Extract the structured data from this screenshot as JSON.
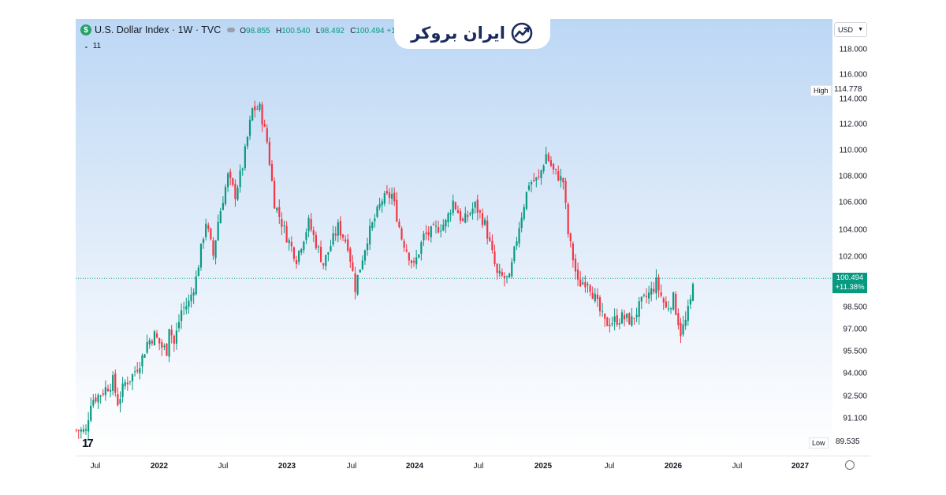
{
  "header": {
    "symbol_title": "U.S. Dollar Index · 1W · TVC",
    "ohlc": {
      "o_label": "O",
      "o": "98.855",
      "h_label": "H",
      "h": "100.540",
      "l_label": "L",
      "l": "98.492",
      "c_label": "C",
      "c": "100.494 +1."
    },
    "indicators_count": "11"
  },
  "brand": {
    "name": "ایران بروکر"
  },
  "currency": {
    "selected": "USD"
  },
  "price_axis": {
    "ticks": [
      "118.000",
      "116.000",
      "114.000",
      "112.000",
      "110.000",
      "108.000",
      "106.000",
      "104.000",
      "102.000",
      "98.500",
      "97.000",
      "95.500",
      "94.000",
      "92.500",
      "91.100"
    ],
    "high_label": "High",
    "high_value": "114.778",
    "low_label": "Low",
    "low_value": "89.535",
    "last_price": "100.494",
    "last_change": "+11.38%"
  },
  "time_axis": {
    "labels": [
      "Jul",
      "2022",
      "Jul",
      "2023",
      "Jul",
      "2024",
      "Jul",
      "2025",
      "Jul",
      "2026",
      "Jul",
      "2027"
    ]
  },
  "colors": {
    "up": "#089981",
    "down": "#f23645",
    "accent": "#089981"
  },
  "chart_data": {
    "type": "candlestick",
    "title": "U.S. Dollar Index · 1W · TVC",
    "xlabel": "",
    "ylabel": "",
    "y_scale": "log",
    "ylim": [
      89.5,
      118.0
    ],
    "x_range": [
      "2021-05",
      "2027-02"
    ],
    "last_price": 100.494,
    "high": 114.778,
    "low": 89.535,
    "series": [
      {
        "name": "U.S. Dollar Index",
        "points": [
          {
            "x": "2021-05-07",
            "y": 90.2
          },
          {
            "x": "2021-06-04",
            "y": 90.1
          },
          {
            "x": "2021-06-18",
            "y": 92.2
          },
          {
            "x": "2021-07-16",
            "y": 92.7
          },
          {
            "x": "2021-08-20",
            "y": 93.5
          },
          {
            "x": "2021-09-03",
            "y": 92.1
          },
          {
            "x": "2021-09-24",
            "y": 93.4
          },
          {
            "x": "2021-10-15",
            "y": 93.9
          },
          {
            "x": "2021-11-12",
            "y": 95.1
          },
          {
            "x": "2021-11-26",
            "y": 96.1
          },
          {
            "x": "2021-12-17",
            "y": 96.6
          },
          {
            "x": "2022-01-07",
            "y": 95.8
          },
          {
            "x": "2022-01-21",
            "y": 95.6
          },
          {
            "x": "2022-01-28",
            "y": 97.3
          },
          {
            "x": "2022-02-11",
            "y": 96.0
          },
          {
            "x": "2022-03-04",
            "y": 98.3
          },
          {
            "x": "2022-03-25",
            "y": 98.8
          },
          {
            "x": "2022-04-15",
            "y": 100.5
          },
          {
            "x": "2022-05-13",
            "y": 104.6
          },
          {
            "x": "2022-06-03",
            "y": 102.1
          },
          {
            "x": "2022-06-17",
            "y": 104.6
          },
          {
            "x": "2022-07-15",
            "y": 108.0
          },
          {
            "x": "2022-08-05",
            "y": 106.6
          },
          {
            "x": "2022-08-26",
            "y": 108.8
          },
          {
            "x": "2022-09-23",
            "y": 113.2
          },
          {
            "x": "2022-10-14",
            "y": 113.3
          },
          {
            "x": "2022-11-04",
            "y": 110.7
          },
          {
            "x": "2022-11-25",
            "y": 106.0
          },
          {
            "x": "2022-12-30",
            "y": 103.5
          },
          {
            "x": "2023-01-27",
            "y": 101.9
          },
          {
            "x": "2023-03-03",
            "y": 104.5
          },
          {
            "x": "2023-03-31",
            "y": 102.5
          },
          {
            "x": "2023-04-14",
            "y": 101.5
          },
          {
            "x": "2023-05-26",
            "y": 104.2
          },
          {
            "x": "2023-06-23",
            "y": 102.9
          },
          {
            "x": "2023-07-14",
            "y": 99.9
          },
          {
            "x": "2023-08-18",
            "y": 103.4
          },
          {
            "x": "2023-09-29",
            "y": 106.2
          },
          {
            "x": "2023-10-27",
            "y": 106.6
          },
          {
            "x": "2023-11-24",
            "y": 103.4
          },
          {
            "x": "2023-12-29",
            "y": 101.3
          },
          {
            "x": "2024-01-26",
            "y": 103.5
          },
          {
            "x": "2024-02-23",
            "y": 103.9
          },
          {
            "x": "2024-03-29",
            "y": 104.5
          },
          {
            "x": "2024-04-19",
            "y": 106.1
          },
          {
            "x": "2024-05-17",
            "y": 104.5
          },
          {
            "x": "2024-06-21",
            "y": 105.8
          },
          {
            "x": "2024-07-19",
            "y": 104.4
          },
          {
            "x": "2024-08-23",
            "y": 100.7
          },
          {
            "x": "2024-09-27",
            "y": 100.4
          },
          {
            "x": "2024-10-25",
            "y": 104.3
          },
          {
            "x": "2024-11-22",
            "y": 107.5
          },
          {
            "x": "2024-12-20",
            "y": 107.8
          },
          {
            "x": "2025-01-10",
            "y": 109.7
          },
          {
            "x": "2025-01-31",
            "y": 108.4
          },
          {
            "x": "2025-02-28",
            "y": 107.6
          },
          {
            "x": "2025-03-14",
            "y": 103.7
          },
          {
            "x": "2025-04-11",
            "y": 100.1
          },
          {
            "x": "2025-05-09",
            "y": 100.4
          },
          {
            "x": "2025-06-13",
            "y": 98.2
          },
          {
            "x": "2025-06-27",
            "y": 97.4
          },
          {
            "x": "2025-07-25",
            "y": 97.6
          },
          {
            "x": "2025-08-15",
            "y": 97.8
          },
          {
            "x": "2025-09-12",
            "y": 97.6
          },
          {
            "x": "2025-10-10",
            "y": 98.8
          },
          {
            "x": "2025-11-07",
            "y": 99.6
          },
          {
            "x": "2025-11-21",
            "y": 100.2
          },
          {
            "x": "2025-12-19",
            "y": 98.4
          },
          {
            "x": "2026-01-09",
            "y": 99.1
          },
          {
            "x": "2026-01-30",
            "y": 96.8
          },
          {
            "x": "2026-02-13",
            "y": 97.5
          },
          {
            "x": "2026-02-27",
            "y": 98.9
          },
          {
            "x": "2026-03-06",
            "y": 100.494
          }
        ]
      }
    ]
  }
}
